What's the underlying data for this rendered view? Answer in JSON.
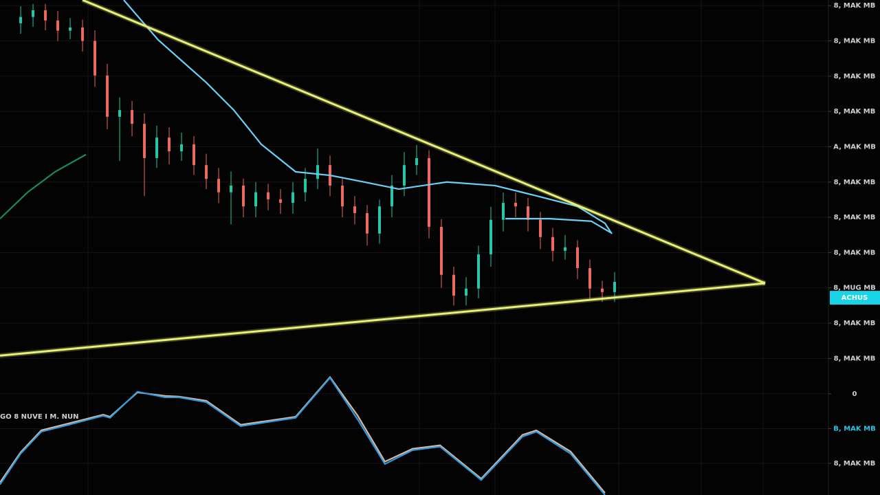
{
  "chart_data": [
    {
      "type": "candlestick",
      "xlim": [
        -1.67,
        65.28
      ],
      "ylim": [
        -0.5,
        10.16
      ],
      "yticks": [
        {
          "value": 10,
          "label": "8, MAK MB"
        },
        {
          "value": 9,
          "label": "8, MAK MB"
        },
        {
          "value": 8,
          "label": "8, MAK MB"
        },
        {
          "value": 7,
          "label": "8, MAK MB"
        },
        {
          "value": 6,
          "label": "A, MAK MB"
        },
        {
          "value": 5,
          "label": "8, MAK MB"
        },
        {
          "value": 4,
          "label": "8, MAK MB"
        },
        {
          "value": 3,
          "label": "8, MAK MB"
        },
        {
          "value": 2,
          "label": "8, MUG MB"
        },
        {
          "value": 1,
          "label": "8, MAK MB"
        },
        {
          "value": 0,
          "label": "8, MAK MB"
        }
      ],
      "grid": true,
      "up_color": "#26c6a6",
      "down_color": "#ef6a5e",
      "x": [
        0,
        1,
        2,
        3,
        4,
        5,
        6,
        7,
        8,
        9,
        10,
        11,
        12,
        13,
        14,
        15,
        16,
        17,
        18,
        19,
        20,
        21,
        22,
        23,
        24,
        25,
        26,
        27,
        28,
        29,
        30,
        31,
        32,
        33,
        34,
        35,
        36,
        37,
        38,
        39,
        40,
        41,
        42,
        43,
        44,
        45,
        46,
        47,
        48
      ],
      "open": [
        9.5,
        9.68,
        9.87,
        9.58,
        9.29,
        9.38,
        9.0,
        8.02,
        6.85,
        7.04,
        6.65,
        5.68,
        6.26,
        5.87,
        6.07,
        5.48,
        5.09,
        4.71,
        4.9,
        4.31,
        4.71,
        4.51,
        4.41,
        4.71,
        5.09,
        5.48,
        4.9,
        4.31,
        4.12,
        3.54,
        4.31,
        4.9,
        5.48,
        5.68,
        3.73,
        2.37,
        1.78,
        1.98,
        2.95,
        3.93,
        4.41,
        4.31,
        3.93,
        3.44,
        3.05,
        3.15,
        2.56,
        1.98,
        1.88
      ],
      "high": [
        9.98,
        10.05,
        10.05,
        9.85,
        9.65,
        9.6,
        9.3,
        8.35,
        7.4,
        7.3,
        6.95,
        6.6,
        6.55,
        6.4,
        6.3,
        5.8,
        5.4,
        5.3,
        5.1,
        5.0,
        4.95,
        4.8,
        5.0,
        5.4,
        5.95,
        5.75,
        5.1,
        4.6,
        4.35,
        4.5,
        5.2,
        5.85,
        6.05,
        5.9,
        3.95,
        2.6,
        2.3,
        3.2,
        4.3,
        4.7,
        4.7,
        4.55,
        4.15,
        3.7,
        3.5,
        3.35,
        2.8,
        2.2,
        2.45
      ],
      "low": [
        9.2,
        9.4,
        9.3,
        9.0,
        9.05,
        8.7,
        7.7,
        6.5,
        5.6,
        6.3,
        4.6,
        5.4,
        5.5,
        5.6,
        5.2,
        4.8,
        4.4,
        3.8,
        4.0,
        4.0,
        4.2,
        4.1,
        4.1,
        4.45,
        4.8,
        4.6,
        4.0,
        3.8,
        3.2,
        3.25,
        4.0,
        4.6,
        5.2,
        3.4,
        2.0,
        1.5,
        1.5,
        1.7,
        2.6,
        3.6,
        4.0,
        3.6,
        3.1,
        2.75,
        2.8,
        2.25,
        1.7,
        1.6,
        1.6
      ],
      "close": [
        9.68,
        9.87,
        9.58,
        9.29,
        9.38,
        9.0,
        8.02,
        6.85,
        7.04,
        6.65,
        5.68,
        6.26,
        5.87,
        6.07,
        5.48,
        5.09,
        4.71,
        4.9,
        4.31,
        4.71,
        4.51,
        4.41,
        4.71,
        5.09,
        5.48,
        4.9,
        4.31,
        4.12,
        3.54,
        4.31,
        4.9,
        5.48,
        5.68,
        3.73,
        2.37,
        1.78,
        1.98,
        2.95,
        3.93,
        4.41,
        4.31,
        3.93,
        3.44,
        3.05,
        3.15,
        2.56,
        1.98,
        1.88,
        2.17
      ],
      "lines": [
        {
          "color": "#6ccff6",
          "x": [
            8.33,
            11.11,
            15.0,
            17.22,
            19.44,
            22.22,
            25.0,
            27.78,
            30.56,
            34.44,
            38.33,
            41.67,
            45.0,
            47.22,
            47.78
          ],
          "values": [
            10.16,
            9.03,
            7.82,
            7.04,
            6.07,
            5.29,
            5.19,
            5.0,
            4.8,
            5.0,
            4.9,
            4.61,
            4.31,
            3.83,
            3.53
          ]
        },
        {
          "color": "#6ccff6",
          "x": [
            39.17,
            42.78,
            46.11,
            47.67
          ],
          "values": [
            3.96,
            3.96,
            3.89,
            3.57
          ]
        },
        {
          "color": "#1a8a5a",
          "x": [
            -1.67,
            0.56,
            2.78,
            5.28
          ],
          "values": [
            3.96,
            4.71,
            5.29,
            5.78
          ]
        }
      ],
      "trendlines": [
        {
          "color": "#e6f07a",
          "x": [
            5,
            60.17
          ],
          "values": [
            10.16,
            2.13
          ]
        },
        {
          "color": "#e6f07a",
          "x": [
            -1.67,
            60.17
          ],
          "values": [
            0.08,
            2.13
          ]
        }
      ],
      "last_price": {
        "value": 1.72,
        "label": "ACHUS",
        "color": "#19d3e6"
      }
    },
    {
      "type": "line",
      "label": "GO 8 NUVE I M. NUN",
      "xlim": [
        -1.67,
        65.28
      ],
      "ylim": [
        -2.91,
        0.51
      ],
      "yticks": [
        0,
        {
          "value": -1,
          "label": "B, MAK MB",
          "color": "#29c5e6"
        },
        {
          "value": -2,
          "label": "8, MAK MB"
        }
      ],
      "grid": true,
      "lines": [
        {
          "color": "#d8b8a0",
          "x": [
            -1.67,
            0,
            1.67,
            3.89,
            6.67,
            7.22,
            9.44,
            11.67,
            12.78,
            15.0,
            17.78,
            22.22,
            25.0,
            27.22,
            29.44,
            31.67,
            33.89,
            37.22,
            40.56,
            41.67,
            44.44,
            47.22
          ],
          "values": [
            -2.55,
            -1.68,
            -1.05,
            -0.85,
            -0.6,
            -0.66,
            0.04,
            -0.06,
            -0.08,
            -0.2,
            -0.89,
            -0.66,
            0.48,
            -0.62,
            -1.95,
            -1.58,
            -1.48,
            -2.44,
            -1.18,
            -1.05,
            -1.66,
            -2.85
          ]
        },
        {
          "color": "#2f9be0",
          "x": [
            -1.67,
            0,
            1.67,
            3.89,
            6.67,
            7.22,
            9.44,
            11.67,
            12.78,
            15.0,
            17.78,
            22.22,
            25.0,
            27.22,
            29.44,
            31.67,
            33.89,
            37.22,
            40.56,
            41.67,
            44.44,
            47.22
          ],
          "values": [
            -2.61,
            -1.72,
            -1.09,
            -0.89,
            -0.63,
            -0.69,
            0.06,
            -0.1,
            -0.1,
            -0.24,
            -0.93,
            -0.69,
            0.46,
            -0.73,
            -2.02,
            -1.62,
            -1.52,
            -2.48,
            -1.23,
            -1.09,
            -1.72,
            -2.91
          ]
        }
      ]
    }
  ]
}
